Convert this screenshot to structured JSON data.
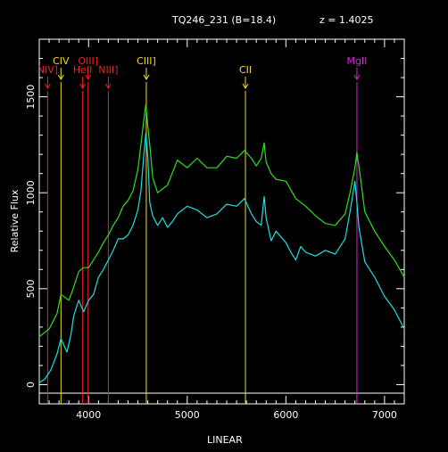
{
  "chart_data": {
    "type": "line",
    "title": "TQ246_231 (B=18.4)",
    "redshift_label": "z = 1.4025",
    "xlabel": "LINEAR",
    "ylabel": "Relative Flux",
    "xlim": [
      3500,
      7200
    ],
    "ylim": [
      -100,
      1800
    ],
    "xticks": [
      4000,
      5000,
      6000,
      7000
    ],
    "yticks": [
      0,
      500,
      1000,
      1500
    ],
    "grid": false,
    "series": [
      {
        "color": "#33dd22",
        "x": [
          3500,
          3600,
          3680,
          3720,
          3800,
          3850,
          3900,
          3950,
          4000,
          4050,
          4100,
          4150,
          4200,
          4250,
          4300,
          4350,
          4400,
          4450,
          4500,
          4530,
          4560,
          4580,
          4600,
          4620,
          4650,
          4700,
          4800,
          4900,
          5000,
          5100,
          5200,
          5300,
          5400,
          5500,
          5580,
          5650,
          5700,
          5750,
          5780,
          5800,
          5850,
          5900,
          6000,
          6100,
          6200,
          6300,
          6400,
          6500,
          6600,
          6650,
          6700,
          6720,
          6750,
          6800,
          6900,
          7000,
          7100,
          7200
        ],
        "y": [
          250,
          290,
          370,
          470,
          440,
          510,
          590,
          610,
          610,
          650,
          690,
          740,
          780,
          830,
          870,
          930,
          960,
          1010,
          1120,
          1250,
          1380,
          1460,
          1350,
          1250,
          1080,
          1000,
          1040,
          1170,
          1130,
          1180,
          1130,
          1130,
          1190,
          1180,
          1220,
          1180,
          1140,
          1180,
          1260,
          1160,
          1100,
          1070,
          1060,
          970,
          930,
          880,
          840,
          830,
          890,
          1000,
          1130,
          1210,
          1100,
          900,
          800,
          720,
          650,
          560
        ]
      },
      {
        "color": "#22dddd",
        "x": [
          3500,
          3560,
          3620,
          3680,
          3720,
          3780,
          3820,
          3850,
          3900,
          3950,
          4000,
          4050,
          4100,
          4150,
          4200,
          4250,
          4300,
          4350,
          4400,
          4450,
          4500,
          4530,
          4560,
          4580,
          4600,
          4620,
          4650,
          4700,
          4750,
          4800,
          4850,
          4900,
          5000,
          5100,
          5200,
          5300,
          5400,
          5500,
          5580,
          5650,
          5700,
          5750,
          5780,
          5800,
          5850,
          5900,
          6000,
          6050,
          6100,
          6150,
          6200,
          6300,
          6400,
          6500,
          6600,
          6650,
          6700,
          6720,
          6740,
          6800,
          6900,
          7000,
          7100,
          7200
        ],
        "y": [
          10,
          30,
          80,
          160,
          240,
          170,
          260,
          360,
          440,
          380,
          440,
          470,
          560,
          600,
          650,
          700,
          760,
          760,
          780,
          830,
          910,
          1010,
          1200,
          1310,
          1190,
          950,
          880,
          830,
          870,
          820,
          850,
          890,
          930,
          910,
          870,
          890,
          940,
          930,
          970,
          890,
          850,
          830,
          980,
          870,
          750,
          800,
          740,
          690,
          650,
          720,
          690,
          670,
          700,
          680,
          760,
          900,
          1060,
          950,
          820,
          640,
          560,
          460,
          390,
          290
        ]
      }
    ],
    "lines": [
      {
        "name": "NIV]",
        "x": 3585,
        "color": "#ee2222"
      },
      {
        "name": "CIV",
        "x": 3720,
        "color": "#eedd22"
      },
      {
        "name": "HeII",
        "x": 3940,
        "color": "#ee2222"
      },
      {
        "name": "OIII]",
        "x": 3995,
        "color": "#ee2222"
      },
      {
        "name": "NIII]",
        "x": 4200,
        "color": "#ee2222"
      },
      {
        "name": "CIII]",
        "x": 4585,
        "color": "#eedd22"
      },
      {
        "name": "CII",
        "x": 5590,
        "color": "#eedd22"
      },
      {
        "name": "MgII",
        "x": 6720,
        "color": "#dd22dd"
      }
    ]
  }
}
